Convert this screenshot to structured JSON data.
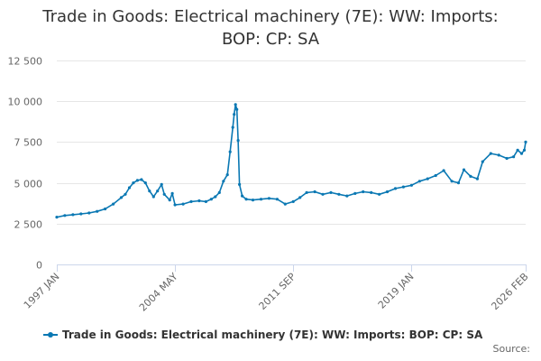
{
  "title_lines": [
    "Trade in Goods: Electrical machinery (7E): WW: Imports:",
    "BOP: CP: SA"
  ],
  "legend_label": "Trade in Goods: Electrical machinery (7E): WW: Imports: BOP: CP: SA",
  "source_label": "Source:",
  "colors": {
    "series": "#0a78b3",
    "grid": "#e6e6e6",
    "axis": "#ccd6eb",
    "text": "#333333",
    "tick_text": "#666666"
  },
  "chart_data": {
    "type": "line",
    "title": "Trade in Goods: Electrical machinery (7E): WW: Imports: BOP: CP: SA",
    "xlabel": "",
    "ylabel": "",
    "x_range": [
      "1997 JAN",
      "2026 FEB"
    ],
    "ylim": [
      0,
      12500
    ],
    "y_ticks": [
      0,
      2500,
      5000,
      7500,
      10000,
      12500
    ],
    "y_tick_labels": [
      "0",
      "2 500",
      "5 000",
      "7 500",
      "10 000",
      "12 500"
    ],
    "x_ticks": [
      "1997 JAN",
      "2004 MAY",
      "2011 SEP",
      "2019 JAN",
      "2026 FEB"
    ],
    "grid": true,
    "legend_position": "bottom",
    "series": [
      {
        "name": "Trade in Goods: Electrical machinery (7E): WW: Imports: BOP: CP: SA",
        "points": [
          [
            "1997 JAN",
            2900
          ],
          [
            "1997 JUL",
            3000
          ],
          [
            "1998 JAN",
            3050
          ],
          [
            "1998 JUL",
            3100
          ],
          [
            "1999 JAN",
            3150
          ],
          [
            "1999 JUL",
            3250
          ],
          [
            "2000 JAN",
            3400
          ],
          [
            "2000 JUL",
            3700
          ],
          [
            "2001 JAN",
            4100
          ],
          [
            "2001 APR",
            4300
          ],
          [
            "2001 JUL",
            4700
          ],
          [
            "2001 OCT",
            5000
          ],
          [
            "2002 JAN",
            5150
          ],
          [
            "2002 APR",
            5200
          ],
          [
            "2002 JUL",
            5000
          ],
          [
            "2002 OCT",
            4500
          ],
          [
            "2003 JAN",
            4150
          ],
          [
            "2003 APR",
            4500
          ],
          [
            "2003 JUL",
            4900
          ],
          [
            "2003 SEP",
            4300
          ],
          [
            "2004 JAN",
            3950
          ],
          [
            "2004 MAR",
            4350
          ],
          [
            "2004 MAY",
            3650
          ],
          [
            "2004 NOV",
            3700
          ],
          [
            "2005 MAY",
            3850
          ],
          [
            "2005 NOV",
            3900
          ],
          [
            "2006 APR",
            3850
          ],
          [
            "2006 AUG",
            4000
          ],
          [
            "2006 NOV",
            4150
          ],
          [
            "2007 FEB",
            4400
          ],
          [
            "2007 MAY",
            5100
          ],
          [
            "2007 AUG",
            5500
          ],
          [
            "2007 OCT",
            6900
          ],
          [
            "2007 DEC",
            8400
          ],
          [
            "2008 JAN",
            9200
          ],
          [
            "2008 FEB",
            9800
          ],
          [
            "2008 MAR",
            9500
          ],
          [
            "2008 APR",
            7600
          ],
          [
            "2008 MAY",
            4900
          ],
          [
            "2008 JUL",
            4200
          ],
          [
            "2008 OCT",
            4000
          ],
          [
            "2009 MAR",
            3950
          ],
          [
            "2009 SEP",
            4000
          ],
          [
            "2010 MAR",
            4050
          ],
          [
            "2010 SEP",
            4000
          ],
          [
            "2011 MAR",
            3700
          ],
          [
            "2011 SEP",
            3850
          ],
          [
            "2012 FEB",
            4100
          ],
          [
            "2012 JUL",
            4400
          ],
          [
            "2013 JAN",
            4450
          ],
          [
            "2013 JUL",
            4300
          ],
          [
            "2014 JAN",
            4400
          ],
          [
            "2014 JUL",
            4300
          ],
          [
            "2015 JAN",
            4200
          ],
          [
            "2015 JUL",
            4350
          ],
          [
            "2016 JAN",
            4450
          ],
          [
            "2016 JUL",
            4400
          ],
          [
            "2017 JAN",
            4300
          ],
          [
            "2017 JUL",
            4450
          ],
          [
            "2018 JAN",
            4650
          ],
          [
            "2018 JUL",
            4750
          ],
          [
            "2019 JAN",
            4850
          ],
          [
            "2019 JUL",
            5100
          ],
          [
            "2020 JAN",
            5250
          ],
          [
            "2020 JUL",
            5450
          ],
          [
            "2021 JAN",
            5750
          ],
          [
            "2021 JUL",
            5100
          ],
          [
            "2021 DEC",
            5000
          ],
          [
            "2022 APR",
            5800
          ],
          [
            "2022 SEP",
            5400
          ],
          [
            "2023 FEB",
            5250
          ],
          [
            "2023 JUN",
            6300
          ],
          [
            "2023 DEC",
            6800
          ],
          [
            "2024 JUN",
            6700
          ],
          [
            "2024 DEC",
            6500
          ],
          [
            "2025 MAY",
            6600
          ],
          [
            "2025 AUG",
            7000
          ],
          [
            "2025 NOV",
            6800
          ],
          [
            "2026 JAN",
            7000
          ],
          [
            "2026 FEB",
            7500
          ]
        ]
      }
    ]
  }
}
